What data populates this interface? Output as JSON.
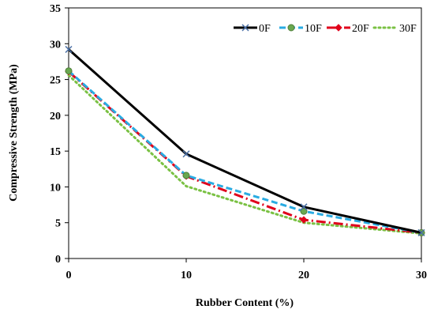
{
  "chart_data": {
    "type": "line",
    "title": "",
    "xlabel": "Rubber Content (%)",
    "ylabel": "Compressive Strength (MPa)",
    "x": [
      0,
      10,
      20,
      30
    ],
    "xlim": [
      0,
      30
    ],
    "ylim": [
      0,
      35
    ],
    "xticks": [
      0,
      10,
      20,
      30
    ],
    "yticks": [
      0,
      5,
      10,
      15,
      20,
      25,
      30,
      35
    ],
    "grid": false,
    "legend_position": "top-right",
    "series": [
      {
        "name": "0F",
        "values": [
          29.2,
          14.6,
          7.2,
          3.6
        ],
        "color": "#000000",
        "dash": "solid",
        "marker": "x"
      },
      {
        "name": "10F",
        "values": [
          26.2,
          11.6,
          6.6,
          3.6
        ],
        "color": "#29ABE2",
        "dash": "dashed",
        "marker": "circle"
      },
      {
        "name": "20F",
        "values": [
          26.1,
          11.5,
          5.4,
          3.6
        ],
        "color": "#E0001B",
        "dash": "dashdot",
        "marker": "diamond"
      },
      {
        "name": "30F",
        "values": [
          25.6,
          10.1,
          5.0,
          3.5
        ],
        "color": "#7AC143",
        "dash": "dotted",
        "marker": "none"
      }
    ]
  }
}
